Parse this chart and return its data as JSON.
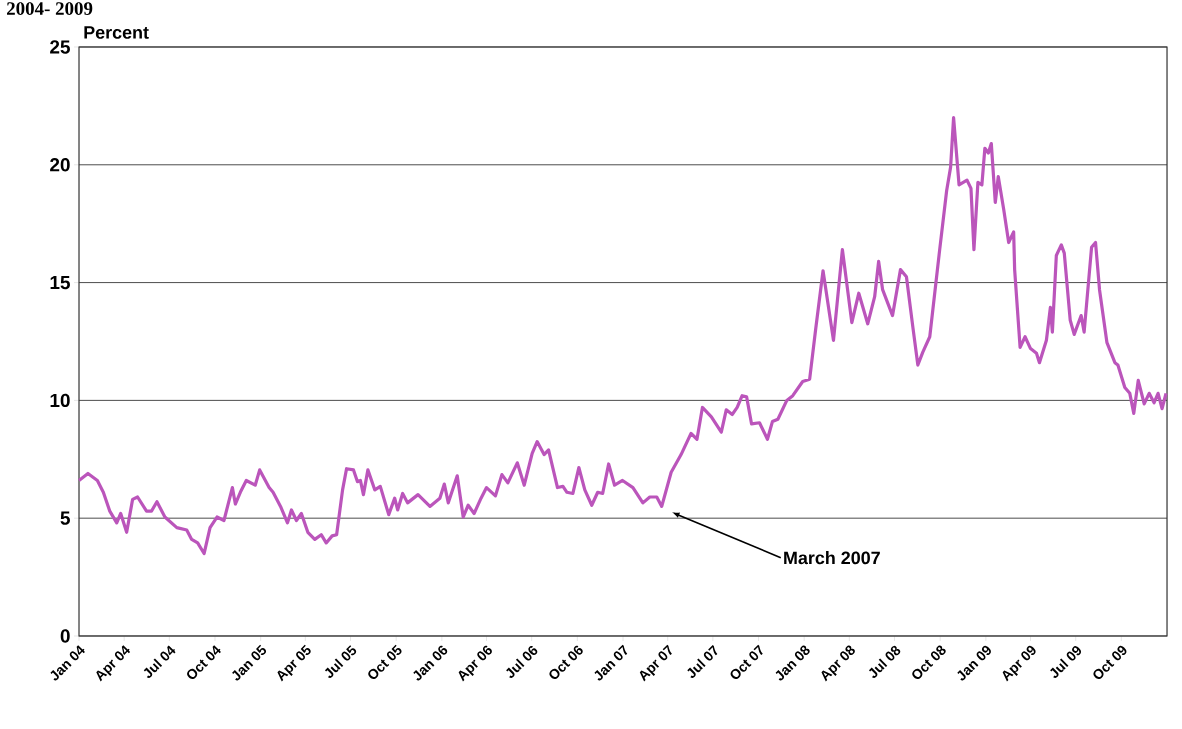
{
  "chart_data": {
    "type": "line",
    "title": "2004- 2009",
    "ylabel": "Percent",
    "color": "#bb55bb",
    "xlim": [
      "2004-01-01",
      "2010-01-01"
    ],
    "ylim": [
      0,
      25
    ],
    "yticks": [
      0,
      5,
      10,
      15,
      20,
      25
    ],
    "xticks": [
      {
        "value": "2004-01-01",
        "label": "Jan 04"
      },
      {
        "value": "2004-04-01",
        "label": "Apr 04"
      },
      {
        "value": "2004-07-01",
        "label": "Jul 04"
      },
      {
        "value": "2004-10-01",
        "label": "Oct 04"
      },
      {
        "value": "2005-01-01",
        "label": "Jan 05"
      },
      {
        "value": "2005-04-01",
        "label": "Apr 05"
      },
      {
        "value": "2005-07-01",
        "label": "Jul 05"
      },
      {
        "value": "2005-10-01",
        "label": "Oct 05"
      },
      {
        "value": "2006-01-01",
        "label": "Jan 06"
      },
      {
        "value": "2006-04-01",
        "label": "Apr 06"
      },
      {
        "value": "2006-07-01",
        "label": "Jul 06"
      },
      {
        "value": "2006-10-01",
        "label": "Oct 06"
      },
      {
        "value": "2007-01-01",
        "label": "Jan 07"
      },
      {
        "value": "2007-04-01",
        "label": "Apr 07"
      },
      {
        "value": "2007-07-01",
        "label": "Jul 07"
      },
      {
        "value": "2007-10-01",
        "label": "Oct 07"
      },
      {
        "value": "2008-01-01",
        "label": "Jan 08"
      },
      {
        "value": "2008-04-01",
        "label": "Apr 08"
      },
      {
        "value": "2008-07-01",
        "label": "Jul 08"
      },
      {
        "value": "2008-10-01",
        "label": "Oct 08"
      },
      {
        "value": "2009-01-01",
        "label": "Jan 09"
      },
      {
        "value": "2009-04-01",
        "label": "Apr 09"
      },
      {
        "value": "2009-07-01",
        "label": "Jul 09"
      },
      {
        "value": "2009-10-01",
        "label": "Oct 09"
      }
    ],
    "grid": "y",
    "annotations": [
      "March 2007"
    ],
    "x": [
      "2004-01-01",
      "2004-01-19",
      "2004-02-07",
      "2004-02-19",
      "2004-03-03",
      "2004-03-17",
      "2004-03-25",
      "2004-04-06",
      "2004-04-18",
      "2004-04-28",
      "2004-05-16",
      "2004-05-26",
      "2004-06-06",
      "2004-06-22",
      "2004-07-16",
      "2004-08-05",
      "2004-08-15",
      "2004-08-27",
      "2004-09-09",
      "2004-09-21",
      "2004-10-05",
      "2004-10-19",
      "2004-11-05",
      "2004-11-11",
      "2004-11-21",
      "2004-12-03",
      "2004-12-21",
      "2004-12-30",
      "2005-01-18",
      "2005-01-26",
      "2005-02-10",
      "2005-02-24",
      "2005-03-04",
      "2005-03-14",
      "2005-03-24",
      "2005-04-06",
      "2005-04-20",
      "2005-05-03",
      "2005-05-13",
      "2005-05-25",
      "2005-06-03",
      "2005-06-15",
      "2005-06-23",
      "2005-07-07",
      "2005-07-15",
      "2005-07-21",
      "2005-07-27",
      "2005-08-05",
      "2005-08-19",
      "2005-08-30",
      "2005-09-16",
      "2005-09-28",
      "2005-10-04",
      "2005-10-14",
      "2005-10-24",
      "2005-11-14",
      "2005-12-08",
      "2005-12-28",
      "2006-01-06",
      "2006-01-14",
      "2006-02-01",
      "2006-02-13",
      "2006-02-23",
      "2006-03-07",
      "2006-03-21",
      "2006-04-01",
      "2006-04-19",
      "2006-05-02",
      "2006-05-14",
      "2006-06-02",
      "2006-06-16",
      "2006-07-02",
      "2006-07-12",
      "2006-07-26",
      "2006-08-04",
      "2006-08-22",
      "2006-09-02",
      "2006-09-10",
      "2006-09-22",
      "2006-10-04",
      "2006-10-16",
      "2006-10-30",
      "2006-11-11",
      "2006-11-21",
      "2006-12-03",
      "2006-12-15",
      "2006-12-31",
      "2007-01-21",
      "2007-02-10",
      "2007-02-24",
      "2007-03-10",
      "2007-03-20",
      "2007-04-08",
      "2007-04-28",
      "2007-05-18",
      "2007-05-30",
      "2007-06-10",
      "2007-06-28",
      "2007-07-18",
      "2007-07-28",
      "2007-08-09",
      "2007-08-19",
      "2007-08-29",
      "2007-09-07",
      "2007-09-17",
      "2007-10-03",
      "2007-10-19",
      "2007-10-29",
      "2007-11-09",
      "2007-11-27",
      "2007-12-09",
      "2007-12-29",
      "2008-01-12",
      "2008-01-24",
      "2008-02-08",
      "2008-02-29",
      "2008-03-18",
      "2008-04-06",
      "2008-04-20",
      "2008-05-08",
      "2008-05-22",
      "2008-05-30",
      "2008-06-07",
      "2008-06-27",
      "2008-07-13",
      "2008-07-25",
      "2008-08-07",
      "2008-08-17",
      "2008-08-27",
      "2008-09-10",
      "2008-09-30",
      "2008-10-14",
      "2008-10-22",
      "2008-10-28",
      "2008-11-08",
      "2008-11-24",
      "2008-12-02",
      "2008-12-08",
      "2008-12-16",
      "2008-12-24",
      "2008-12-30",
      "2009-01-06",
      "2009-01-12",
      "2009-01-20",
      "2009-01-26",
      "2009-02-06",
      "2009-02-16",
      "2009-02-26",
      "2009-02-28",
      "2009-03-11",
      "2009-03-21",
      "2009-04-01",
      "2009-04-13",
      "2009-04-19",
      "2009-05-03",
      "2009-05-11",
      "2009-05-15",
      "2009-05-23",
      "2009-06-02",
      "2009-06-08",
      "2009-06-20",
      "2009-06-28",
      "2009-07-12",
      "2009-07-18",
      "2009-08-02",
      "2009-08-10",
      "2009-08-18",
      "2009-09-02",
      "2009-09-18",
      "2009-09-24",
      "2009-10-08",
      "2009-10-18",
      "2009-10-26",
      "2009-11-04",
      "2009-11-16",
      "2009-11-26",
      "2009-12-06",
      "2009-12-14",
      "2009-12-22",
      "2009-12-30"
    ],
    "values": [
      6.6,
      6.9,
      6.6,
      6.1,
      5.3,
      4.8,
      5.2,
      4.4,
      5.8,
      5.9,
      5.3,
      5.3,
      5.7,
      5.05,
      4.6,
      4.5,
      4.1,
      3.95,
      3.5,
      4.6,
      5.05,
      4.9,
      6.3,
      5.6,
      6.1,
      6.6,
      6.4,
      7.05,
      6.3,
      6.1,
      5.5,
      4.8,
      5.35,
      4.9,
      5.2,
      4.4,
      4.1,
      4.3,
      3.95,
      4.25,
      4.3,
      6.2,
      7.1,
      7.05,
      6.55,
      6.6,
      6.0,
      7.05,
      6.2,
      6.35,
      5.15,
      5.85,
      5.35,
      6.05,
      5.65,
      6.0,
      5.5,
      5.85,
      6.45,
      5.65,
      6.8,
      5.05,
      5.55,
      5.2,
      5.85,
      6.3,
      5.95,
      6.85,
      6.5,
      7.35,
      6.4,
      7.75,
      8.25,
      7.7,
      7.9,
      6.3,
      6.35,
      6.1,
      6.05,
      7.15,
      6.2,
      5.55,
      6.1,
      6.05,
      7.3,
      6.4,
      6.6,
      6.3,
      5.65,
      5.9,
      5.9,
      5.5,
      6.95,
      7.7,
      8.6,
      8.35,
      9.7,
      9.3,
      8.65,
      9.6,
      9.4,
      9.7,
      10.2,
      10.15,
      9.0,
      9.05,
      8.35,
      9.1,
      9.2,
      10.0,
      10.2,
      10.8,
      10.9,
      13.0,
      15.5,
      12.55,
      16.4,
      13.3,
      14.55,
      13.25,
      14.4,
      15.9,
      14.7,
      13.6,
      15.55,
      15.25,
      13.1,
      11.5,
      12.05,
      12.7,
      16.4,
      18.9,
      19.9,
      22.0,
      19.15,
      19.35,
      19.0,
      16.4,
      19.25,
      19.15,
      20.7,
      20.5,
      20.9,
      18.4,
      19.5,
      18.1,
      16.7,
      17.15,
      15.55,
      12.25,
      12.7,
      12.2,
      12.0,
      11.6,
      12.55,
      13.95,
      12.9,
      16.15,
      16.6,
      16.25,
      13.4,
      12.8,
      13.6,
      12.9,
      16.5,
      16.7,
      14.7,
      12.45,
      11.6,
      11.5,
      10.55,
      10.3,
      9.45,
      10.85,
      9.85,
      10.3,
      9.9,
      10.3,
      9.65,
      10.3
    ]
  }
}
